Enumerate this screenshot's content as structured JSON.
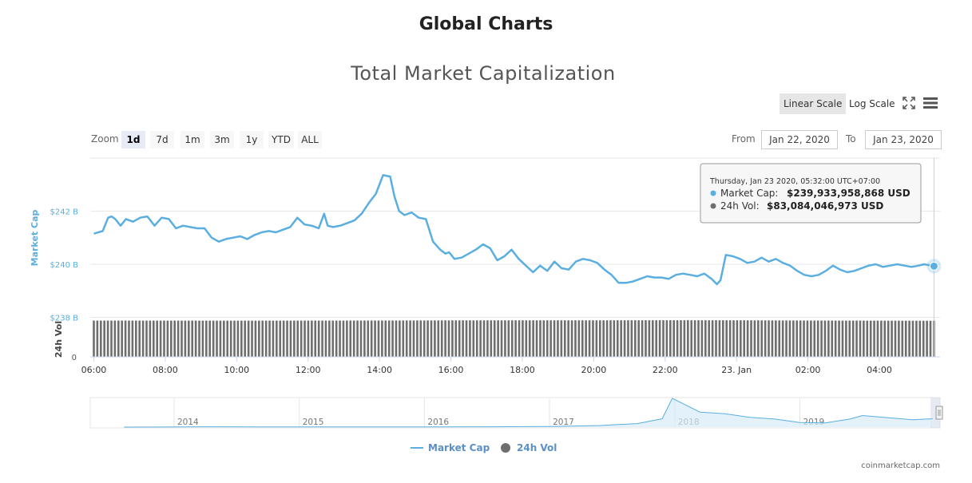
{
  "page": {
    "heading": "Global Charts",
    "credit": "coinmarketcap.com"
  },
  "toolbar": {
    "linear_scale": "Linear Scale",
    "log_scale": "Log Scale",
    "zoom_label": "Zoom",
    "zoom_options": [
      "1d",
      "7d",
      "1m",
      "3m",
      "1y",
      "YTD",
      "ALL"
    ],
    "zoom_active": "1d",
    "from_label": "From",
    "from_value": "Jan 22, 2020",
    "to_label": "To",
    "to_value": "Jan 23, 2020"
  },
  "tooltip": {
    "header": "Thursday, Jan 23 2020, 05:32:00 UTC+07:00",
    "market_cap_label": "Market Cap:",
    "market_cap_value": "$239,933,958,868 USD",
    "vol_label": "24h Vol:",
    "vol_value": "$83,084,046,973 USD"
  },
  "colors": {
    "market_cap": "#5aaee0",
    "volume": "#6e6e6e",
    "grid": "#e6e6e6",
    "navigator_fill": "#d7ecf8"
  },
  "chart_data": {
    "type": "line",
    "title": "Total Market Capitalization",
    "ylabel": "Market Cap",
    "y2label": "24h Vol",
    "yticks": [
      "$238 B",
      "$240 B",
      "$242 B"
    ],
    "y2ticks": [
      "0"
    ],
    "ylim": [
      238,
      243.6
    ],
    "xlim": [
      5.9,
      29.7
    ],
    "xticks": [
      {
        "x": 6,
        "label": "06:00"
      },
      {
        "x": 8,
        "label": "08:00"
      },
      {
        "x": 10,
        "label": "10:00"
      },
      {
        "x": 12,
        "label": "12:00"
      },
      {
        "x": 14,
        "label": "14:00"
      },
      {
        "x": 16,
        "label": "16:00"
      },
      {
        "x": 18,
        "label": "18:00"
      },
      {
        "x": 20,
        "label": "20:00"
      },
      {
        "x": 22,
        "label": "22:00"
      },
      {
        "x": 24,
        "label": "23. Jan"
      },
      {
        "x": 26,
        "label": "02:00"
      },
      {
        "x": 28,
        "label": "04:00"
      }
    ],
    "series": [
      {
        "name": "Market Cap",
        "unit": "B USD",
        "x": [
          6.0,
          6.25,
          6.4,
          6.5,
          6.6,
          6.75,
          6.9,
          7.1,
          7.3,
          7.5,
          7.7,
          7.9,
          8.1,
          8.3,
          8.5,
          8.7,
          8.9,
          9.1,
          9.3,
          9.5,
          9.7,
          9.9,
          10.1,
          10.3,
          10.5,
          10.7,
          10.9,
          11.1,
          11.3,
          11.5,
          11.7,
          11.9,
          12.1,
          12.3,
          12.45,
          12.55,
          12.7,
          12.9,
          13.1,
          13.3,
          13.5,
          13.7,
          13.9,
          14.1,
          14.3,
          14.42,
          14.55,
          14.7,
          14.9,
          15.1,
          15.3,
          15.5,
          15.7,
          15.85,
          15.95,
          16.1,
          16.3,
          16.5,
          16.7,
          16.9,
          17.1,
          17.3,
          17.5,
          17.7,
          17.9,
          18.1,
          18.3,
          18.5,
          18.7,
          18.9,
          19.1,
          19.3,
          19.5,
          19.7,
          19.9,
          20.1,
          20.3,
          20.5,
          20.7,
          20.9,
          21.1,
          21.3,
          21.5,
          21.7,
          21.9,
          22.1,
          22.3,
          22.5,
          22.7,
          22.9,
          23.1,
          23.3,
          23.45,
          23.55,
          23.7,
          23.9,
          24.1,
          24.3,
          24.5,
          24.7,
          24.9,
          25.1,
          25.3,
          25.5,
          25.7,
          25.9,
          26.1,
          26.3,
          26.5,
          26.7,
          26.9,
          27.1,
          27.3,
          27.5,
          27.7,
          27.9,
          28.1,
          28.3,
          28.5,
          28.7,
          28.9,
          29.1,
          29.25,
          29.53
        ],
        "y": [
          241.15,
          241.25,
          241.75,
          241.8,
          241.7,
          241.45,
          241.7,
          241.6,
          241.75,
          241.8,
          241.45,
          241.75,
          241.7,
          241.35,
          241.45,
          241.4,
          241.35,
          241.35,
          241.0,
          240.85,
          240.95,
          241.0,
          241.05,
          240.95,
          241.1,
          241.2,
          241.25,
          241.2,
          241.3,
          241.4,
          241.75,
          241.5,
          241.45,
          241.35,
          241.9,
          241.45,
          241.4,
          241.45,
          241.55,
          241.65,
          241.9,
          242.3,
          242.65,
          243.35,
          243.3,
          242.55,
          242.0,
          241.85,
          241.95,
          241.75,
          241.7,
          240.85,
          240.55,
          240.4,
          240.45,
          240.2,
          240.25,
          240.4,
          240.55,
          240.75,
          240.6,
          240.15,
          240.3,
          240.55,
          240.2,
          239.95,
          239.7,
          239.95,
          239.75,
          240.1,
          239.85,
          239.8,
          240.1,
          240.2,
          240.15,
          240.05,
          239.8,
          239.6,
          239.3,
          239.3,
          239.35,
          239.45,
          239.55,
          239.5,
          239.5,
          239.45,
          239.6,
          239.65,
          239.6,
          239.55,
          239.65,
          239.45,
          239.25,
          239.4,
          240.35,
          240.3,
          240.2,
          240.05,
          240.1,
          240.25,
          240.1,
          240.2,
          240.05,
          239.95,
          239.75,
          239.6,
          239.55,
          239.6,
          239.75,
          239.95,
          239.8,
          239.7,
          239.75,
          239.85,
          239.95,
          240.0,
          239.9,
          239.95,
          240.0,
          239.95,
          239.9,
          239.95,
          240.0,
          239.93
        ]
      },
      {
        "name": "24h Vol",
        "unit": "B USD",
        "x_range": [
          6.0,
          29.53
        ],
        "bar_count": 240,
        "values_profile": [
          [
            6.0,
            83.5
          ],
          [
            10.0,
            83.3
          ],
          [
            14.0,
            83.6
          ],
          [
            16.0,
            84.0
          ],
          [
            20.0,
            84.1
          ],
          [
            22.0,
            84.3
          ],
          [
            24.0,
            84.2
          ],
          [
            26.0,
            83.6
          ],
          [
            28.0,
            83.3
          ],
          [
            29.53,
            83.08
          ]
        ],
        "ylim": [
          0,
          90
        ]
      }
    ],
    "navigator": {
      "labels": [
        "2014",
        "2015",
        "2016",
        "2017",
        "2018",
        "2019"
      ],
      "x": [
        2013.6,
        2013.9,
        2014.3,
        2014.7,
        2015.0,
        2015.5,
        2016.0,
        2016.5,
        2017.0,
        2017.4,
        2017.7,
        2017.9,
        2017.98,
        2018.05,
        2018.2,
        2018.4,
        2018.6,
        2018.8,
        2019.0,
        2019.2,
        2019.4,
        2019.5,
        2019.7,
        2019.9,
        2020.06
      ],
      "y": [
        1,
        2,
        8,
        6,
        4,
        4,
        7,
        10,
        17,
        45,
        100,
        240,
        820,
        700,
        430,
        380,
        280,
        230,
        130,
        120,
        230,
        330,
        270,
        210,
        240
      ],
      "ylim": [
        0,
        820
      ],
      "xlim": [
        2013.33,
        2020.12
      ]
    },
    "legend": {
      "position": "bottom-center",
      "items": [
        "Market Cap",
        "24h Vol"
      ]
    },
    "grid": true
  }
}
